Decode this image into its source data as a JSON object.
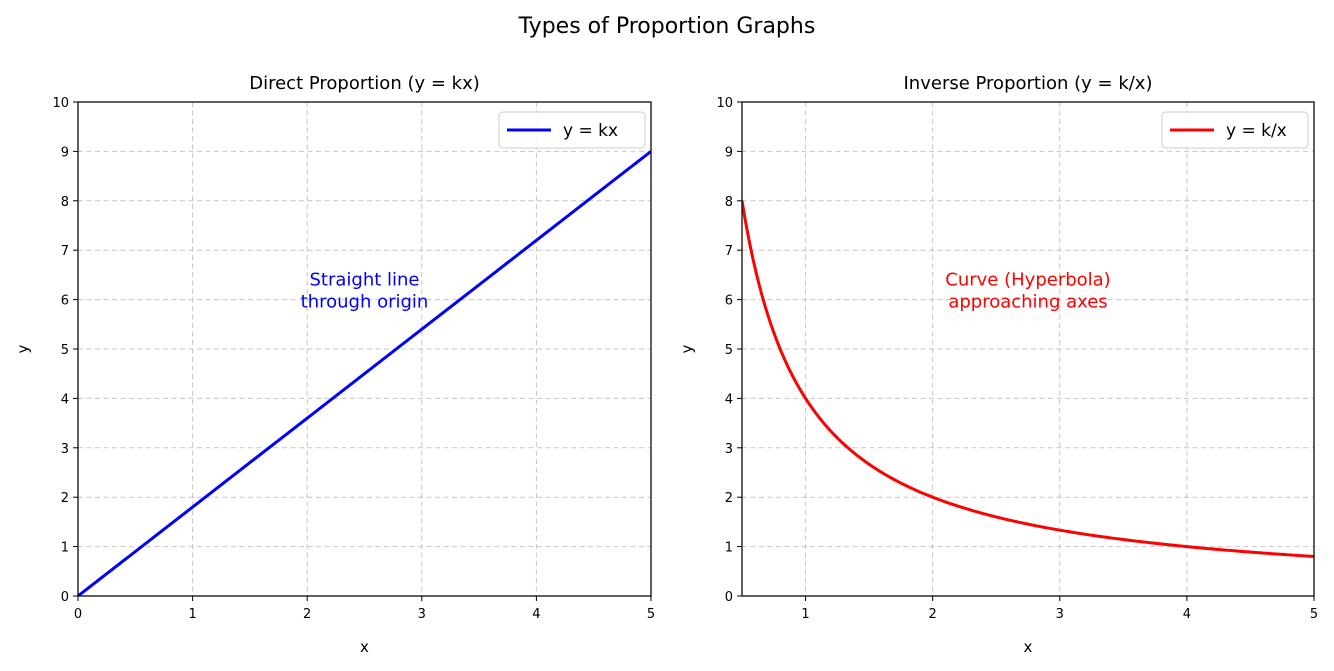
{
  "figure": {
    "suptitle": "Types of Proportion Graphs"
  },
  "chart_data": [
    {
      "type": "line",
      "title": "Direct Proportion (y = kx)",
      "xlabel": "x",
      "ylabel": "y",
      "xlim": [
        0,
        5
      ],
      "ylim": [
        0,
        10
      ],
      "xticks": [
        "0",
        "1",
        "2",
        "3",
        "4",
        "5"
      ],
      "yticks": [
        "0",
        "1",
        "2",
        "3",
        "4",
        "5",
        "6",
        "7",
        "8",
        "9",
        "10"
      ],
      "grid": true,
      "legend_position": "top-right",
      "series": [
        {
          "name": "y = kx",
          "color": "#0000ff",
          "x": [
            0,
            0.5,
            1,
            1.5,
            2,
            2.5,
            3,
            3.5,
            4,
            4.5,
            5
          ],
          "y": [
            0,
            0.9,
            1.8,
            2.7,
            3.6,
            4.5,
            5.4,
            6.3,
            7.2,
            8.1,
            9.0
          ]
        }
      ],
      "annotation": {
        "lines": [
          "Straight line",
          "through origin"
        ],
        "x": 2.5,
        "y": 6.2,
        "color": "#0000ff"
      }
    },
    {
      "type": "line",
      "title": "Inverse Proportion (y = k/x)",
      "xlabel": "x",
      "ylabel": "y",
      "xlim": [
        0.5,
        5
      ],
      "ylim": [
        0,
        10
      ],
      "xticks": [
        "1",
        "2",
        "3",
        "4",
        "5"
      ],
      "yticks": [
        "0",
        "1",
        "2",
        "3",
        "4",
        "5",
        "6",
        "7",
        "8",
        "9",
        "10"
      ],
      "grid": true,
      "legend_position": "top-right",
      "series": [
        {
          "name": "y = k/x",
          "color": "#ff0000",
          "x": [
            0.5,
            0.6,
            0.7,
            0.8,
            0.9,
            1.0,
            1.2,
            1.4,
            1.6,
            1.8,
            2.0,
            2.5,
            3.0,
            3.5,
            4.0,
            4.5,
            5.0
          ],
          "y": [
            8.0,
            6.67,
            5.71,
            5.0,
            4.44,
            4.0,
            3.33,
            2.86,
            2.5,
            2.22,
            2.0,
            1.6,
            1.33,
            1.14,
            1.0,
            0.89,
            0.8
          ]
        }
      ],
      "annotation": {
        "lines": [
          "Curve (Hyperbola)",
          "approaching axes"
        ],
        "x": 2.75,
        "y": 6.2,
        "color": "#ff0000"
      }
    }
  ]
}
